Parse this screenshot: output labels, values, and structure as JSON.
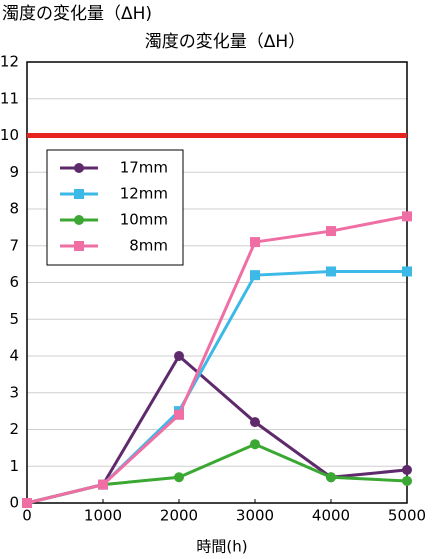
{
  "chart_data": {
    "type": "line",
    "title": "濁度の変化量（ΔH)",
    "subtitle": "濁度の変化量（ΔH）",
    "x_label": "時間(h)",
    "x": [
      0,
      1000,
      2000,
      3000,
      4000,
      5000
    ],
    "xlim": [
      0,
      5000
    ],
    "xticks": [
      0,
      1000,
      2000,
      3000,
      4000,
      5000
    ],
    "ylim": [
      0,
      12
    ],
    "yticks": [
      0,
      1,
      2,
      3,
      4,
      5,
      6,
      7,
      8,
      9,
      10,
      11,
      12
    ],
    "grid": true,
    "reference_line": {
      "value": 10,
      "color": "#e8231f"
    },
    "legend": "upper left",
    "series": [
      {
        "name": "17mm",
        "color": "#5e2a6b",
        "marker": "circle",
        "values": [
          0,
          0.5,
          4.0,
          2.2,
          0.7,
          0.9
        ]
      },
      {
        "name": "12mm",
        "color": "#3db9e8",
        "marker": "square",
        "values": [
          0,
          0.5,
          2.5,
          6.2,
          6.3,
          6.3
        ]
      },
      {
        "name": "10mm",
        "color": "#3aa832",
        "marker": "circle",
        "values": [
          0,
          0.5,
          0.7,
          1.6,
          0.7,
          0.6
        ]
      },
      {
        "name": "8mm",
        "color": "#ef6fa4",
        "marker": "square",
        "values": [
          0,
          0.5,
          2.4,
          7.1,
          7.4,
          7.8
        ]
      }
    ]
  }
}
